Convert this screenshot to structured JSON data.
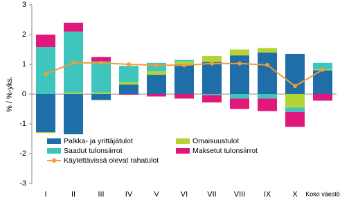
{
  "chart_data": {
    "type": "stacked-bar-line",
    "y_label": "% / %-yks.",
    "categories": [
      "I",
      "II",
      "III",
      "IV",
      "V",
      "VI",
      "VII",
      "VIII",
      "IX",
      "X",
      "Koko väestö"
    ],
    "ylim": [
      -3,
      3
    ],
    "yticks": [
      -3,
      -2,
      -1,
      0,
      1,
      2,
      3
    ],
    "series": [
      {
        "name": "Palkka- ja yrittäjätulot",
        "color": "#1f6ea8",
        "values": [
          -1.28,
          -1.35,
          -0.2,
          0.32,
          0.65,
          1.0,
          1.08,
          1.3,
          1.4,
          1.35,
          0.8
        ]
      },
      {
        "name": "Omaisuustulot",
        "color": "#b4d334",
        "values": [
          -0.03,
          0.05,
          0.05,
          0.08,
          0.12,
          0.1,
          0.2,
          0.2,
          0.15,
          -0.45,
          0.03
        ]
      },
      {
        "name": "Saadut tulonsiirrot",
        "color": "#3ec5be",
        "values": [
          1.58,
          2.05,
          1.05,
          0.55,
          0.28,
          0.05,
          -0.03,
          -0.15,
          -0.15,
          -0.15,
          0.22
        ]
      },
      {
        "name": "Maksetut tulonsiirrot",
        "color": "#e0187c",
        "values": [
          0.42,
          0.3,
          0.15,
          -0.02,
          -0.08,
          -0.15,
          -0.25,
          -0.35,
          -0.42,
          -0.5,
          -0.22
        ]
      },
      {
        "name": "Käytettävissä olevat rahatulot",
        "color": "#f29b38",
        "line": true,
        "values": [
          0.68,
          1.05,
          1.05,
          1.0,
          0.97,
          0.97,
          1.03,
          1.03,
          0.98,
          0.27,
          0.82
        ]
      }
    ]
  }
}
